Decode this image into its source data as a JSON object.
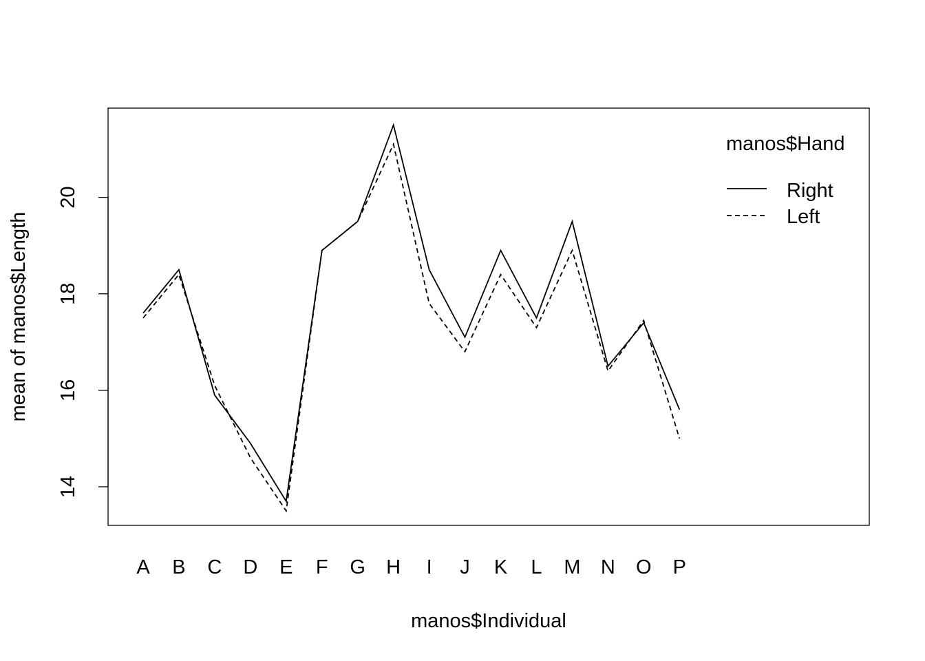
{
  "chart_data": {
    "type": "line",
    "title": "",
    "xlabel": "manos$Individual",
    "ylabel": "mean of  manos$Length",
    "categories": [
      "A",
      "B",
      "C",
      "D",
      "E",
      "F",
      "G",
      "H",
      "I",
      "J",
      "K",
      "L",
      "M",
      "N",
      "O",
      "P"
    ],
    "series": [
      {
        "name": "Right",
        "line_style": "solid",
        "values": [
          17.6,
          18.5,
          15.9,
          14.9,
          13.7,
          18.9,
          19.5,
          21.5,
          18.5,
          17.1,
          18.9,
          17.5,
          19.5,
          16.5,
          17.4,
          15.6
        ]
      },
      {
        "name": "Left",
        "line_style": "dashed",
        "values": [
          17.5,
          18.4,
          16.1,
          14.6,
          13.5,
          18.9,
          19.5,
          21.1,
          17.8,
          16.8,
          18.4,
          17.3,
          18.9,
          16.4,
          17.45,
          15.0
        ]
      }
    ],
    "y_ticks": [
      "14",
      "16",
      "18",
      "20"
    ],
    "ylim": [
      13.2,
      21.85
    ],
    "grid": false,
    "legend": {
      "title": "manos$Hand",
      "placement": "top-right"
    },
    "colors": {
      "line": "#000000",
      "background": "#ffffff"
    }
  }
}
